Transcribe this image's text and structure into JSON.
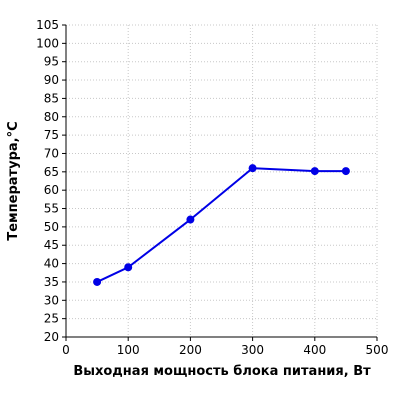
{
  "chart_data": {
    "type": "line",
    "title": "",
    "xlabel": "Выходная мощность блока питания, Вт",
    "ylabel": "Температура,°С",
    "xlim": [
      0,
      500
    ],
    "ylim": [
      20,
      105
    ],
    "x_ticks": [
      0,
      100,
      200,
      300,
      400,
      500
    ],
    "y_ticks": [
      20,
      25,
      30,
      35,
      40,
      45,
      50,
      55,
      60,
      65,
      70,
      75,
      80,
      85,
      90,
      95,
      100,
      105
    ],
    "grid": true,
    "legend": "none",
    "series": [
      {
        "color": "#0000e6",
        "x": [
          50,
          100,
          200,
          300,
          400,
          450
        ],
        "y": [
          35,
          39,
          52,
          66,
          65.2,
          65.2
        ]
      }
    ]
  }
}
